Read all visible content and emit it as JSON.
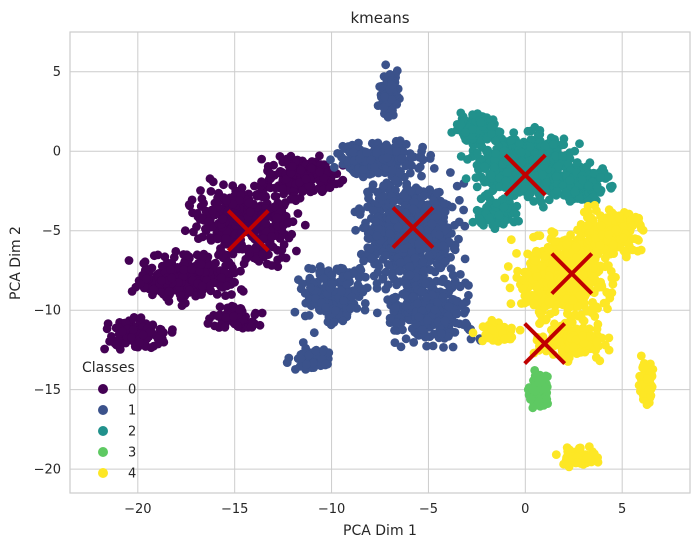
{
  "chart_data": {
    "type": "scatter",
    "title": "kmeans",
    "xlabel": "PCA Dim 1",
    "ylabel": "PCA Dim 2",
    "xlim": [
      -23.5,
      8.5
    ],
    "ylim": [
      -21.5,
      7.5
    ],
    "x_ticks": [
      -20,
      -15,
      -10,
      -5,
      0,
      5
    ],
    "y_ticks": [
      5,
      0,
      -5,
      -10,
      -15,
      -20
    ],
    "x_tick_labels": [
      "−20",
      "−15",
      "−10",
      "−5",
      "0",
      "5"
    ],
    "y_tick_labels": [
      "5",
      "0",
      "−5",
      "−10",
      "−15",
      "−20"
    ],
    "grid": true,
    "legend": {
      "title": "Classes",
      "placement": "lower-left",
      "entries": [
        {
          "label": "0",
          "color": "#440154"
        },
        {
          "label": "1",
          "color": "#3b528b"
        },
        {
          "label": "2",
          "color": "#21918c"
        },
        {
          "label": "3",
          "color": "#5ec962"
        },
        {
          "label": "4",
          "color": "#fde725"
        }
      ]
    },
    "series": [
      {
        "cluster": "0",
        "color": "#440154",
        "regions": [
          {
            "cx": -14.5,
            "cy": -4.5,
            "rx": 3.5,
            "ry": 3.2,
            "n": 420
          },
          {
            "cx": -17.5,
            "cy": -8.0,
            "rx": 3.5,
            "ry": 2.0,
            "n": 260
          },
          {
            "cx": -11.5,
            "cy": -1.5,
            "rx": 2.5,
            "ry": 1.6,
            "n": 220
          },
          {
            "cx": -20.0,
            "cy": -11.5,
            "rx": 2.2,
            "ry": 1.3,
            "n": 110
          },
          {
            "cx": -15.0,
            "cy": -10.5,
            "rx": 1.8,
            "ry": 1.0,
            "n": 80
          }
        ]
      },
      {
        "cluster": "1",
        "color": "#3b528b",
        "regions": [
          {
            "cx": -6.0,
            "cy": -5.0,
            "rx": 3.4,
            "ry": 4.5,
            "n": 650
          },
          {
            "cx": -5.0,
            "cy": -10.0,
            "rx": 3.0,
            "ry": 3.0,
            "n": 320
          },
          {
            "cx": -10.0,
            "cy": -9.0,
            "rx": 2.3,
            "ry": 2.6,
            "n": 180
          },
          {
            "cx": -7.5,
            "cy": -0.5,
            "rx": 3.0,
            "ry": 1.6,
            "n": 200
          },
          {
            "cx": -7.0,
            "cy": 3.5,
            "rx": 0.7,
            "ry": 2.0,
            "n": 120
          },
          {
            "cx": -11.0,
            "cy": -13.0,
            "rx": 1.5,
            "ry": 1.0,
            "n": 60
          }
        ]
      },
      {
        "cluster": "2",
        "color": "#21918c",
        "regions": [
          {
            "cx": 0.0,
            "cy": -1.0,
            "rx": 3.6,
            "ry": 2.8,
            "n": 620
          },
          {
            "cx": -2.5,
            "cy": 1.5,
            "rx": 1.5,
            "ry": 1.2,
            "n": 150
          },
          {
            "cx": 3.0,
            "cy": -2.0,
            "rx": 1.8,
            "ry": 1.6,
            "n": 160
          },
          {
            "cx": -1.5,
            "cy": -4.0,
            "rx": 1.6,
            "ry": 1.0,
            "n": 90
          }
        ]
      },
      {
        "cluster": "3",
        "color": "#5ec962",
        "regions": [
          {
            "cx": 0.7,
            "cy": -15.0,
            "rx": 0.8,
            "ry": 1.4,
            "n": 70
          }
        ]
      },
      {
        "cluster": "4",
        "color": "#fde725",
        "regions": [
          {
            "cx": 2.0,
            "cy": -8.0,
            "rx": 3.2,
            "ry": 3.8,
            "n": 520
          },
          {
            "cx": 4.5,
            "cy": -5.0,
            "rx": 2.2,
            "ry": 2.2,
            "n": 200
          },
          {
            "cx": 2.5,
            "cy": -12.0,
            "rx": 2.4,
            "ry": 1.6,
            "n": 160
          },
          {
            "cx": 6.3,
            "cy": -14.5,
            "rx": 0.6,
            "ry": 1.8,
            "n": 60
          },
          {
            "cx": 2.7,
            "cy": -19.2,
            "rx": 1.4,
            "ry": 0.8,
            "n": 60
          },
          {
            "cx": -1.5,
            "cy": -11.5,
            "rx": 1.3,
            "ry": 1.0,
            "n": 70
          }
        ]
      }
    ],
    "centroids": [
      {
        "x": -14.3,
        "y": -5.0
      },
      {
        "x": -5.8,
        "y": -4.8
      },
      {
        "x": 0.0,
        "y": -1.5
      },
      {
        "x": 2.4,
        "y": -7.7
      },
      {
        "x": 1.0,
        "y": -12.1
      }
    ],
    "centroid_color": "#c00000"
  }
}
